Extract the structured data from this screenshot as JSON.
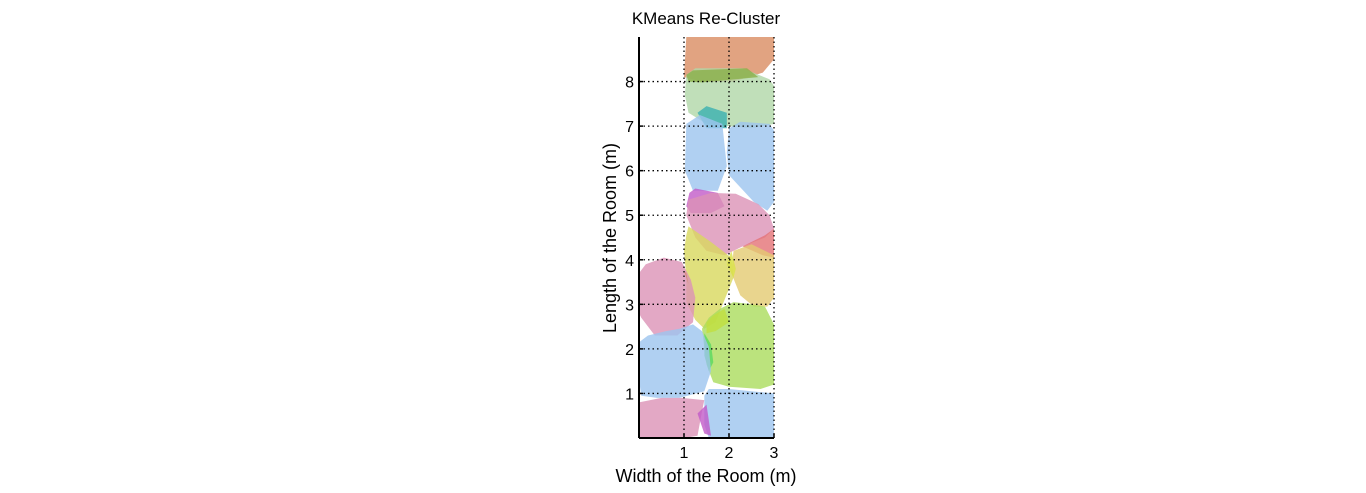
{
  "chart_data": {
    "type": "area",
    "title": "KMeans Re-Cluster",
    "xlabel": "Width of the Room (m)",
    "ylabel": "Length of the Room (m)",
    "xlim": [
      0,
      3
    ],
    "ylim": [
      0,
      9
    ],
    "xticks": [
      1,
      2,
      3
    ],
    "yticks": [
      1,
      2,
      3,
      4,
      5,
      6,
      7,
      8
    ],
    "grid": true,
    "grid_style": "dotted",
    "opacity": 0.8,
    "clusters": [
      {
        "color": "#d98c62",
        "points": [
          [
            1.0,
            8.1
          ],
          [
            1.05,
            9.0
          ],
          [
            3.0,
            9.0
          ],
          [
            3.0,
            8.5
          ],
          [
            2.75,
            8.2
          ],
          [
            2.1,
            8.0
          ],
          [
            1.4,
            8.0
          ]
        ]
      },
      {
        "color": "#b0d7a8",
        "points": [
          [
            1.05,
            8.15
          ],
          [
            1.25,
            8.3
          ],
          [
            2.3,
            8.3
          ],
          [
            2.9,
            8.05
          ],
          [
            3.0,
            7.9
          ],
          [
            3.0,
            7.05
          ],
          [
            2.5,
            6.95
          ],
          [
            2.0,
            7.0
          ],
          [
            1.5,
            7.05
          ],
          [
            1.1,
            7.3
          ],
          [
            1.02,
            7.7
          ]
        ]
      },
      {
        "color": "#8ab04a",
        "points": [
          [
            1.05,
            8.15
          ],
          [
            1.2,
            8.25
          ],
          [
            2.4,
            8.3
          ],
          [
            2.65,
            8.1
          ],
          [
            1.4,
            7.98
          ],
          [
            1.1,
            8.0
          ]
        ]
      },
      {
        "color": "#3ab0b0",
        "points": [
          [
            1.3,
            7.3
          ],
          [
            1.5,
            7.45
          ],
          [
            1.95,
            7.3
          ],
          [
            1.95,
            6.95
          ],
          [
            1.5,
            6.95
          ]
        ]
      },
      {
        "color": "#9cc4ef",
        "points": [
          [
            1.05,
            7.05
          ],
          [
            1.35,
            7.25
          ],
          [
            1.85,
            7.05
          ],
          [
            1.95,
            6.1
          ],
          [
            1.75,
            5.55
          ],
          [
            1.2,
            5.55
          ],
          [
            1.02,
            6.0
          ]
        ]
      },
      {
        "color": "#9cc4ef",
        "points": [
          [
            2.0,
            6.95
          ],
          [
            2.25,
            7.1
          ],
          [
            2.9,
            7.05
          ],
          [
            3.0,
            6.9
          ],
          [
            3.0,
            5.3
          ],
          [
            2.85,
            5.1
          ],
          [
            2.55,
            5.3
          ],
          [
            2.0,
            5.9
          ],
          [
            1.95,
            6.4
          ]
        ]
      },
      {
        "color": "#c25ac8",
        "points": [
          [
            1.05,
            5.2
          ],
          [
            1.12,
            5.5
          ],
          [
            1.25,
            5.6
          ],
          [
            1.75,
            5.5
          ],
          [
            1.9,
            5.2
          ],
          [
            1.6,
            5.05
          ],
          [
            1.15,
            5.05
          ]
        ]
      },
      {
        "color": "#dc92b6",
        "points": [
          [
            1.05,
            5.0
          ],
          [
            1.1,
            5.35
          ],
          [
            1.6,
            5.5
          ],
          [
            2.15,
            5.48
          ],
          [
            2.65,
            5.25
          ],
          [
            2.9,
            5.0
          ],
          [
            3.0,
            4.7
          ],
          [
            2.8,
            4.5
          ],
          [
            2.3,
            4.3
          ],
          [
            1.9,
            4.1
          ],
          [
            1.5,
            4.2
          ],
          [
            1.25,
            4.5
          ]
        ]
      },
      {
        "color": "#e47276",
        "points": [
          [
            2.3,
            4.3
          ],
          [
            2.75,
            4.1
          ],
          [
            3.0,
            4.05
          ],
          [
            3.0,
            4.7
          ],
          [
            2.8,
            4.55
          ]
        ]
      },
      {
        "color": "#e4cb72",
        "points": [
          [
            2.1,
            4.2
          ],
          [
            2.5,
            4.35
          ],
          [
            3.0,
            4.1
          ],
          [
            3.0,
            3.15
          ],
          [
            2.85,
            2.95
          ],
          [
            2.55,
            2.95
          ],
          [
            2.25,
            3.2
          ],
          [
            2.05,
            3.7
          ]
        ]
      },
      {
        "color": "#d8d85c",
        "points": [
          [
            1.05,
            4.55
          ],
          [
            1.1,
            4.75
          ],
          [
            1.6,
            4.4
          ],
          [
            2.05,
            4.05
          ],
          [
            2.1,
            3.6
          ],
          [
            1.9,
            3.1
          ],
          [
            1.7,
            2.6
          ],
          [
            1.45,
            2.45
          ],
          [
            1.25,
            2.65
          ],
          [
            1.05,
            3.05
          ],
          [
            1.05,
            3.6
          ],
          [
            1.0,
            4.2
          ]
        ]
      },
      {
        "color": "#d9e24a",
        "points": [
          [
            1.95,
            3.9
          ],
          [
            2.05,
            4.2
          ],
          [
            2.15,
            3.8
          ],
          [
            2.1,
            3.6
          ]
        ]
      },
      {
        "color": "#dc92b6",
        "points": [
          [
            0.05,
            2.7
          ],
          [
            0.35,
            2.3
          ],
          [
            0.85,
            2.3
          ],
          [
            1.2,
            2.6
          ],
          [
            1.25,
            3.15
          ],
          [
            1.15,
            3.55
          ],
          [
            0.95,
            3.95
          ],
          [
            0.55,
            4.05
          ],
          [
            0.15,
            3.9
          ],
          [
            0.0,
            3.7
          ],
          [
            0.0,
            2.8
          ]
        ]
      },
      {
        "color": "#d68472",
        "points": [
          [
            0.9,
            3.85
          ],
          [
            1.05,
            3.7
          ],
          [
            1.1,
            3.45
          ],
          [
            1.0,
            3.75
          ]
        ]
      },
      {
        "color": "#aadc5c",
        "points": [
          [
            1.4,
            2.45
          ],
          [
            1.5,
            1.65
          ],
          [
            1.65,
            1.25
          ],
          [
            2.0,
            1.15
          ],
          [
            2.7,
            1.1
          ],
          [
            3.0,
            1.2
          ],
          [
            3.0,
            2.55
          ],
          [
            2.8,
            2.95
          ],
          [
            2.5,
            3.0
          ],
          [
            2.1,
            3.05
          ],
          [
            1.8,
            2.9
          ],
          [
            1.55,
            2.7
          ]
        ]
      },
      {
        "color": "#c2df3e",
        "points": [
          [
            1.5,
            2.6
          ],
          [
            1.65,
            2.75
          ],
          [
            1.9,
            2.9
          ],
          [
            2.0,
            2.6
          ],
          [
            1.7,
            2.4
          ],
          [
            1.5,
            2.35
          ]
        ]
      },
      {
        "color": "#5ad860",
        "points": [
          [
            1.45,
            2.35
          ],
          [
            1.6,
            2.1
          ],
          [
            1.65,
            1.7
          ],
          [
            1.55,
            1.5
          ],
          [
            1.45,
            1.85
          ]
        ]
      },
      {
        "color": "#9cc4ef",
        "points": [
          [
            0.05,
            0.95
          ],
          [
            0.0,
            1.3
          ],
          [
            0.0,
            2.15
          ],
          [
            0.2,
            2.3
          ],
          [
            0.6,
            2.4
          ],
          [
            0.9,
            2.45
          ],
          [
            1.2,
            2.55
          ],
          [
            1.4,
            2.4
          ],
          [
            1.55,
            2.05
          ],
          [
            1.6,
            1.5
          ],
          [
            1.45,
            1.05
          ],
          [
            0.9,
            0.9
          ],
          [
            0.4,
            0.9
          ]
        ]
      },
      {
        "color": "#9cc4ef",
        "points": [
          [
            1.45,
            0.95
          ],
          [
            1.55,
            1.1
          ],
          [
            2.0,
            1.1
          ],
          [
            2.5,
            1.05
          ],
          [
            3.0,
            1.0
          ],
          [
            3.0,
            0.0
          ],
          [
            1.55,
            0.0
          ],
          [
            1.45,
            0.3
          ]
        ]
      },
      {
        "color": "#dc92b6",
        "points": [
          [
            0.0,
            0.8
          ],
          [
            0.5,
            0.9
          ],
          [
            0.95,
            0.9
          ],
          [
            1.45,
            0.85
          ],
          [
            1.4,
            0.6
          ],
          [
            1.3,
            0.05
          ],
          [
            1.0,
            0.0
          ],
          [
            0.0,
            0.0
          ]
        ]
      },
      {
        "color": "#c25ac8",
        "points": [
          [
            1.3,
            0.55
          ],
          [
            1.5,
            0.75
          ],
          [
            1.55,
            0.4
          ],
          [
            1.6,
            0.05
          ],
          [
            1.45,
            0.1
          ]
        ]
      }
    ]
  }
}
